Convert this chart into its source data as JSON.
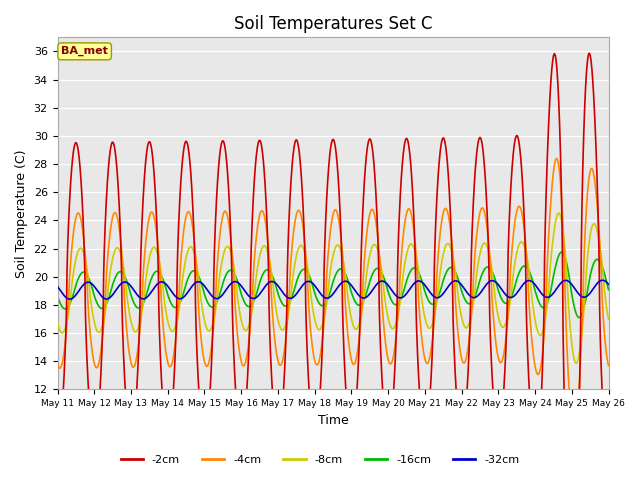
{
  "title": "Soil Temperatures Set C",
  "xlabel": "Time",
  "ylabel": "Soil Temperature (C)",
  "ylim": [
    12,
    37
  ],
  "yticks": [
    12,
    14,
    16,
    18,
    20,
    22,
    24,
    26,
    28,
    30,
    32,
    34,
    36
  ],
  "colors": {
    "-2cm": "#cc0000",
    "-4cm": "#ff8800",
    "-8cm": "#cccc00",
    "-16cm": "#00bb00",
    "-32cm": "#0000cc"
  },
  "annotation_text": "BA_met",
  "annotation_color": "#880000",
  "annotation_bg": "#ffff99",
  "plot_bg_color": "#e8e8e8",
  "base_temp": 19.0,
  "linewidth": 1.2
}
